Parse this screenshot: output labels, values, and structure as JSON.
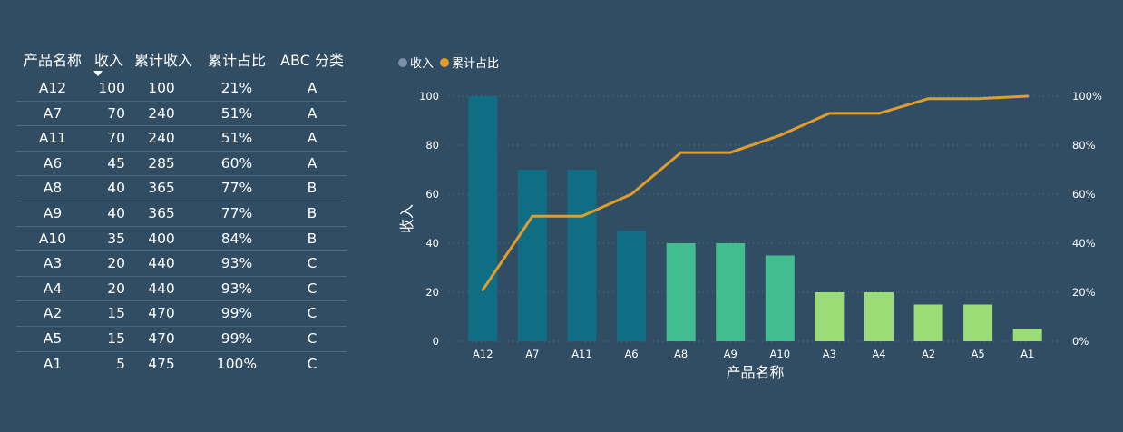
{
  "table": {
    "headers": [
      "产品名称",
      "收入",
      "累计收入",
      "累计占比",
      "ABC 分类"
    ],
    "rows": [
      [
        "A12",
        "100",
        "100",
        "21%",
        "A"
      ],
      [
        "A7",
        "70",
        "240",
        "51%",
        "A"
      ],
      [
        "A11",
        "70",
        "240",
        "51%",
        "A"
      ],
      [
        "A6",
        "45",
        "285",
        "60%",
        "A"
      ],
      [
        "A8",
        "40",
        "365",
        "77%",
        "B"
      ],
      [
        "A9",
        "40",
        "365",
        "77%",
        "B"
      ],
      [
        "A10",
        "35",
        "400",
        "84%",
        "B"
      ],
      [
        "A3",
        "20",
        "440",
        "93%",
        "C"
      ],
      [
        "A4",
        "20",
        "440",
        "93%",
        "C"
      ],
      [
        "A2",
        "15",
        "470",
        "99%",
        "C"
      ],
      [
        "A5",
        "15",
        "470",
        "99%",
        "C"
      ],
      [
        "A1",
        "5",
        "475",
        "100%",
        "C"
      ]
    ]
  },
  "chart_data": {
    "type": "bar",
    "categories": [
      "A12",
      "A7",
      "A11",
      "A6",
      "A8",
      "A9",
      "A10",
      "A3",
      "A4",
      "A2",
      "A5",
      "A1"
    ],
    "series": [
      {
        "name": "收入",
        "type": "bar",
        "values": [
          100,
          70,
          70,
          45,
          40,
          40,
          35,
          20,
          20,
          15,
          15,
          5
        ]
      },
      {
        "name": "累计占比",
        "type": "line",
        "axis": "right",
        "values": [
          21,
          51,
          51,
          60,
          77,
          77,
          84,
          93,
          93,
          99,
          99,
          100
        ]
      }
    ],
    "abc_class": [
      "A",
      "A",
      "A",
      "A",
      "B",
      "B",
      "B",
      "C",
      "C",
      "C",
      "C",
      "C"
    ],
    "class_colors": {
      "A": "#0f6d84",
      "B": "#42bd8f",
      "C": "#9bdc77"
    },
    "line_color": "#e19d2c",
    "legend_colors": [
      "#7f8ea8",
      "#e19d2c"
    ],
    "legend": [
      "收入",
      "累计占比"
    ],
    "xlabel": "产品名称",
    "ylabel": "收入",
    "ylim": [
      0,
      100
    ],
    "y2lim": [
      0,
      100
    ],
    "yticks": [
      "0",
      "20",
      "40",
      "60",
      "80",
      "100"
    ],
    "y2ticks": [
      "0%",
      "20%",
      "40%",
      "60%",
      "80%",
      "100%"
    ],
    "grid": true,
    "legend_position": "top-left"
  }
}
